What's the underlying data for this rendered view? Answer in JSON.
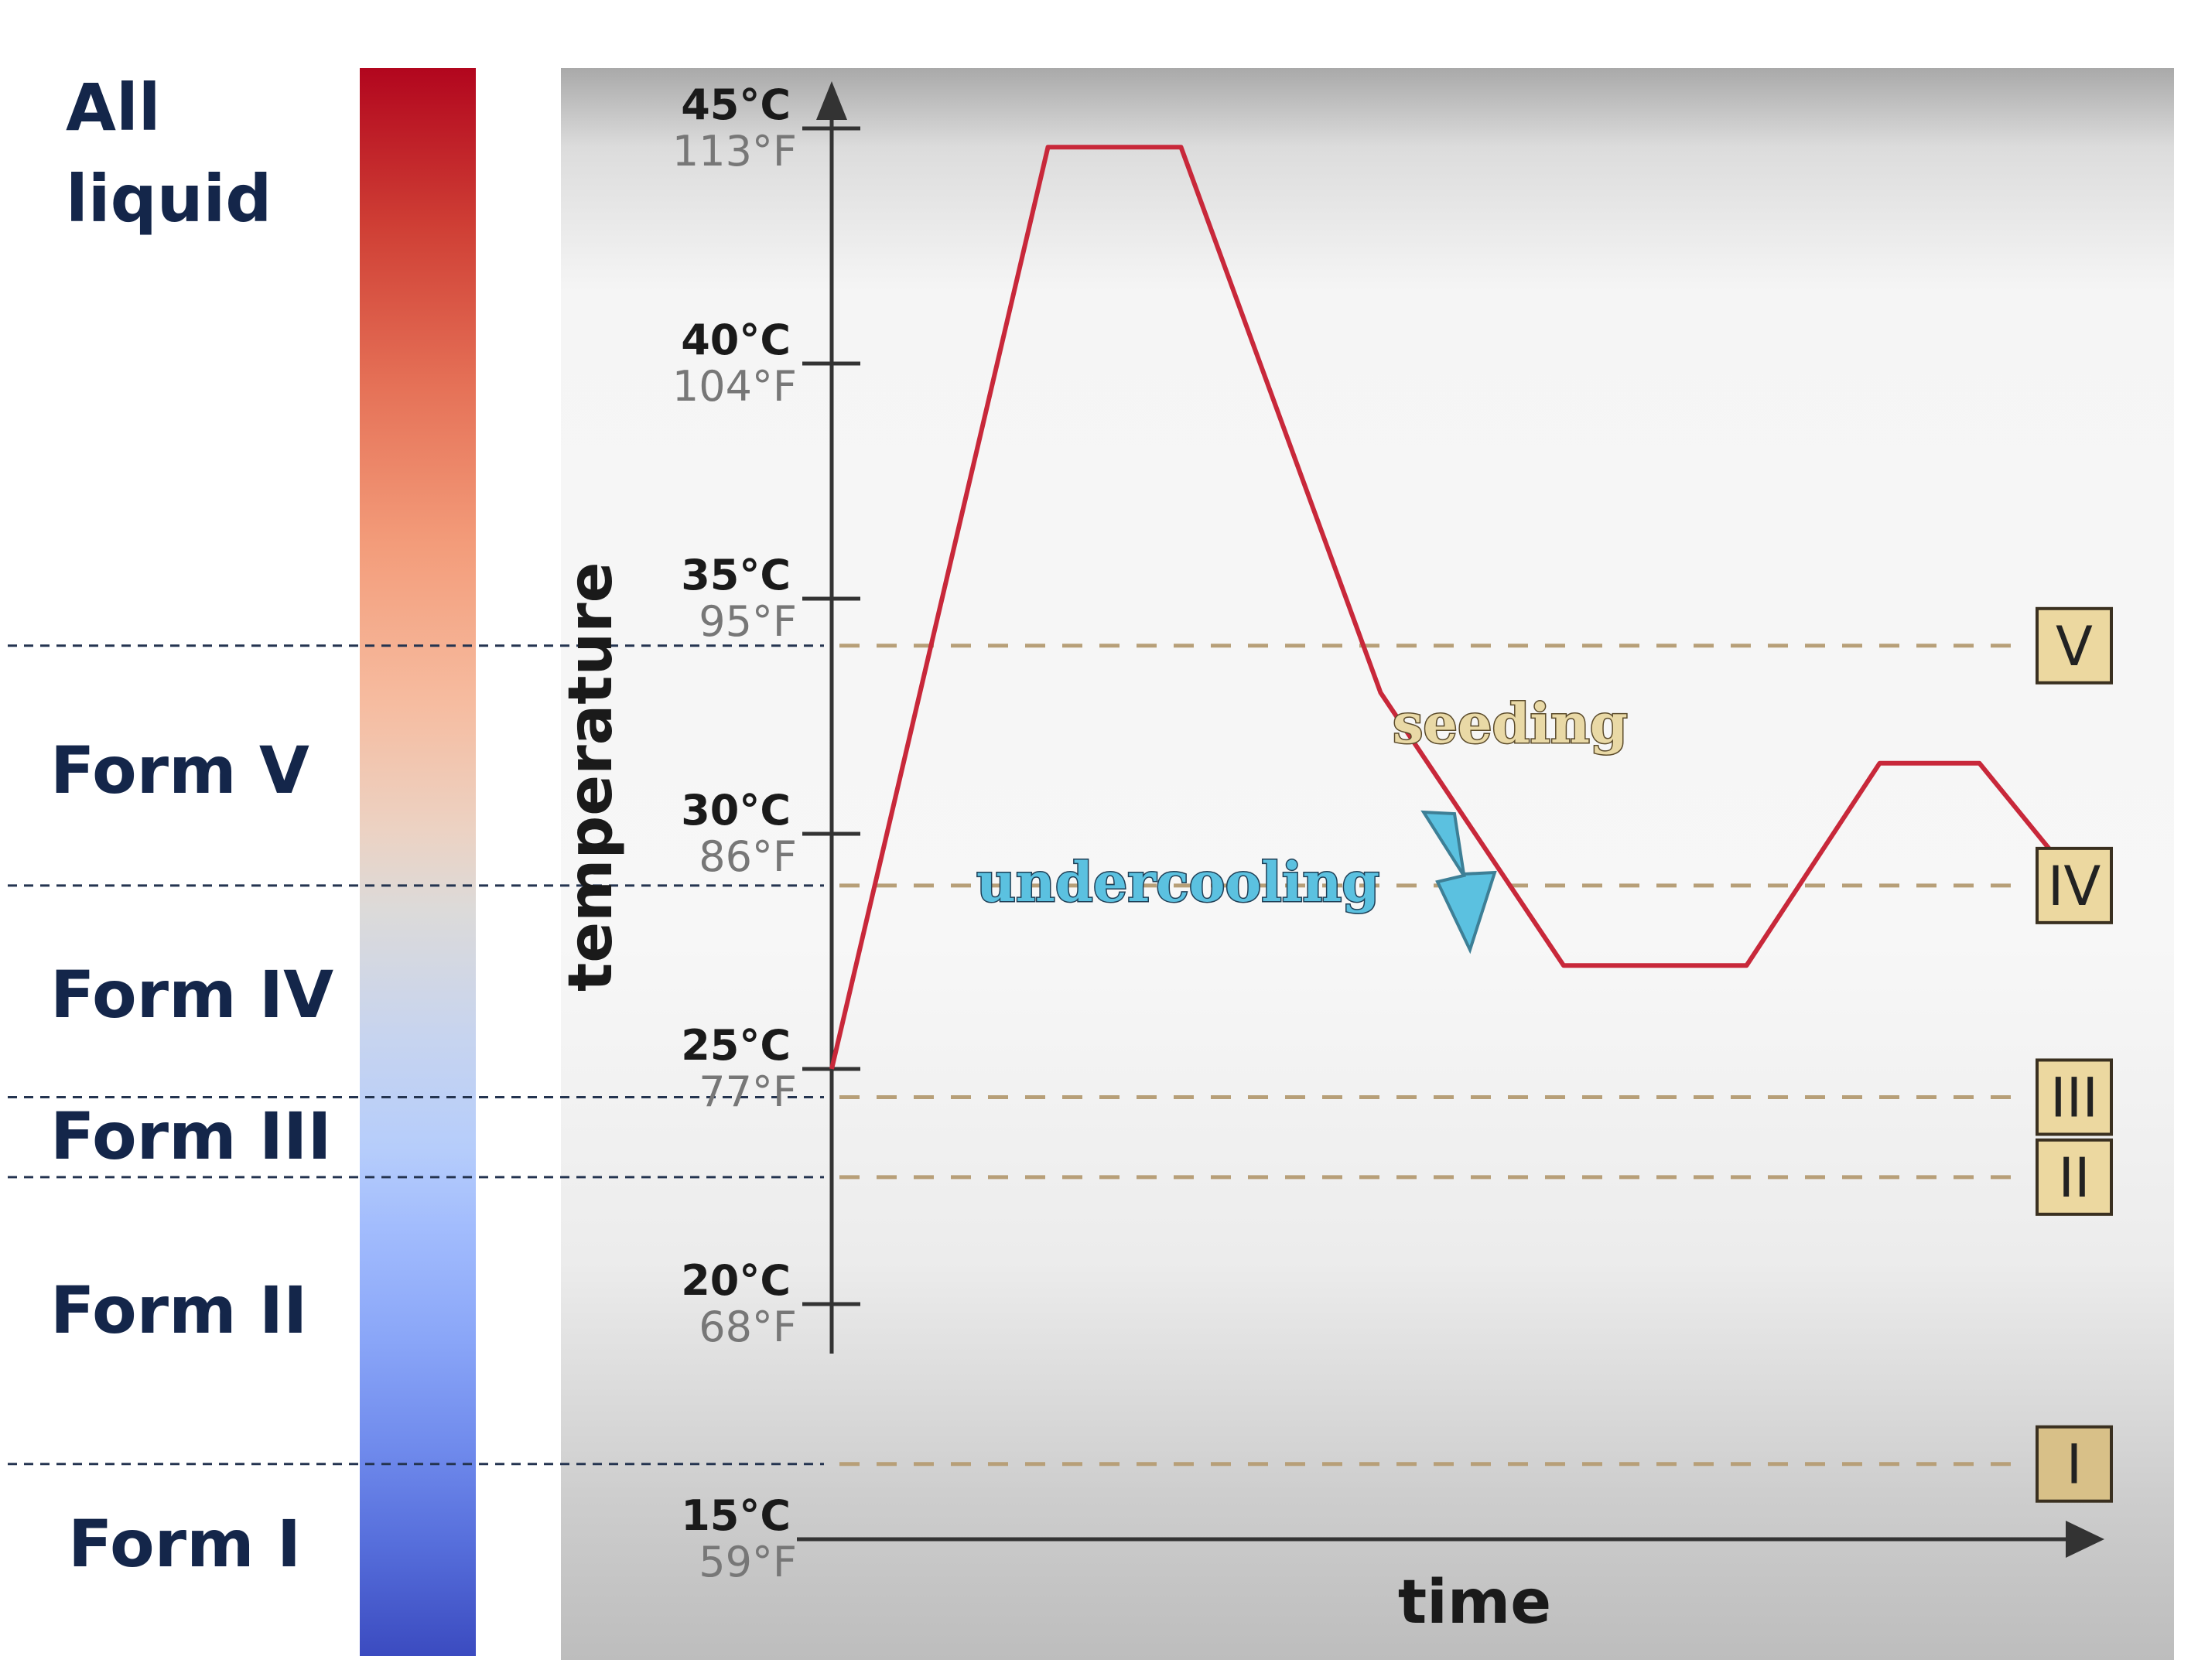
{
  "colorbar": {
    "labels": [
      "All liquid",
      "Form V",
      "Form IV",
      "Form III",
      "Form II",
      "Form I"
    ]
  },
  "chart_data": {
    "type": "line",
    "title": "",
    "xlabel": "time",
    "ylabel": "temperature",
    "ylim": [
      15,
      46.5
    ],
    "grid": false,
    "y_ticks": [
      {
        "c": 45,
        "c_label": "45°C",
        "f_label": "113°F"
      },
      {
        "c": 40,
        "c_label": "40°C",
        "f_label": "104°F"
      },
      {
        "c": 35,
        "c_label": "35°C",
        "f_label": "95°F"
      },
      {
        "c": 30,
        "c_label": "30°C",
        "f_label": "86°F"
      },
      {
        "c": 25,
        "c_label": "25°C",
        "f_label": "77°F"
      },
      {
        "c": 20,
        "c_label": "20°C",
        "f_label": "68°F"
      },
      {
        "c": 15,
        "c_label": "15°C",
        "f_label": "59°F"
      }
    ],
    "series": [
      {
        "color": "#c8283a",
        "points": [
          [
            0,
            25.0
          ],
          [
            13,
            44.6
          ],
          [
            21,
            44.6
          ],
          [
            33,
            33.0
          ],
          [
            44,
            27.2
          ],
          [
            55,
            27.2
          ],
          [
            63,
            31.5
          ],
          [
            69,
            31.5
          ],
          [
            75,
            28.9
          ]
        ]
      }
    ],
    "reference_lines": [
      {
        "label": "V",
        "y": 34.0
      },
      {
        "label": "IV",
        "y": 28.9
      },
      {
        "label": "III",
        "y": 24.4
      },
      {
        "label": "II",
        "y": 22.7
      },
      {
        "label": "I",
        "y": 16.6
      }
    ],
    "annotations": {
      "seeding": "seeding",
      "undercooling": "undercooling"
    }
  },
  "colors": {
    "curve": "#c8283a",
    "reference_dash": "#b79f78",
    "form_box_fill": "#ecd8a0",
    "form_box_fill_dark": "#d8c088",
    "label_text": "#14264a",
    "arrow": "#5bc1e0"
  }
}
